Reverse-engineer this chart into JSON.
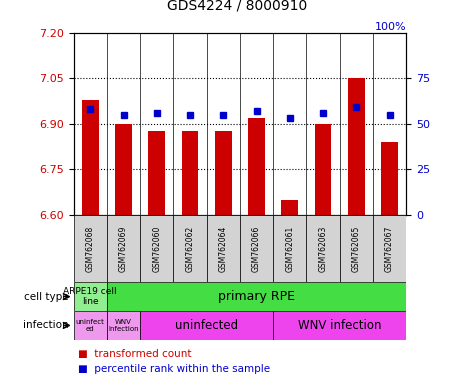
{
  "title": "GDS4224 / 8000910",
  "samples": [
    "GSM762068",
    "GSM762069",
    "GSM762060",
    "GSM762062",
    "GSM762064",
    "GSM762066",
    "GSM762061",
    "GSM762063",
    "GSM762065",
    "GSM762067"
  ],
  "transformed_counts": [
    6.98,
    6.9,
    6.875,
    6.875,
    6.875,
    6.92,
    6.65,
    6.9,
    7.05,
    6.84
  ],
  "percentile_ranks": [
    58,
    55,
    56,
    55,
    55,
    57,
    53,
    56,
    59,
    55
  ],
  "ylim": [
    6.6,
    7.2
  ],
  "yticks": [
    6.6,
    6.75,
    6.9,
    7.05,
    7.2
  ],
  "right_yticks_vals": [
    0,
    25,
    50,
    75
  ],
  "bar_color": "#cc0000",
  "dot_color": "#0000cc",
  "bar_bottom": 6.6,
  "dotted_lines": [
    6.75,
    6.9,
    7.05
  ],
  "cell_type_color_1": "#90ee90",
  "cell_type_color_2": "#44dd44",
  "infection_color_light": "#ee99ee",
  "infection_color_bright": "#ee44ee",
  "sample_bg_color": "#d3d3d3",
  "cell_type_row_label": "cell type",
  "infection_row_label": "infection"
}
